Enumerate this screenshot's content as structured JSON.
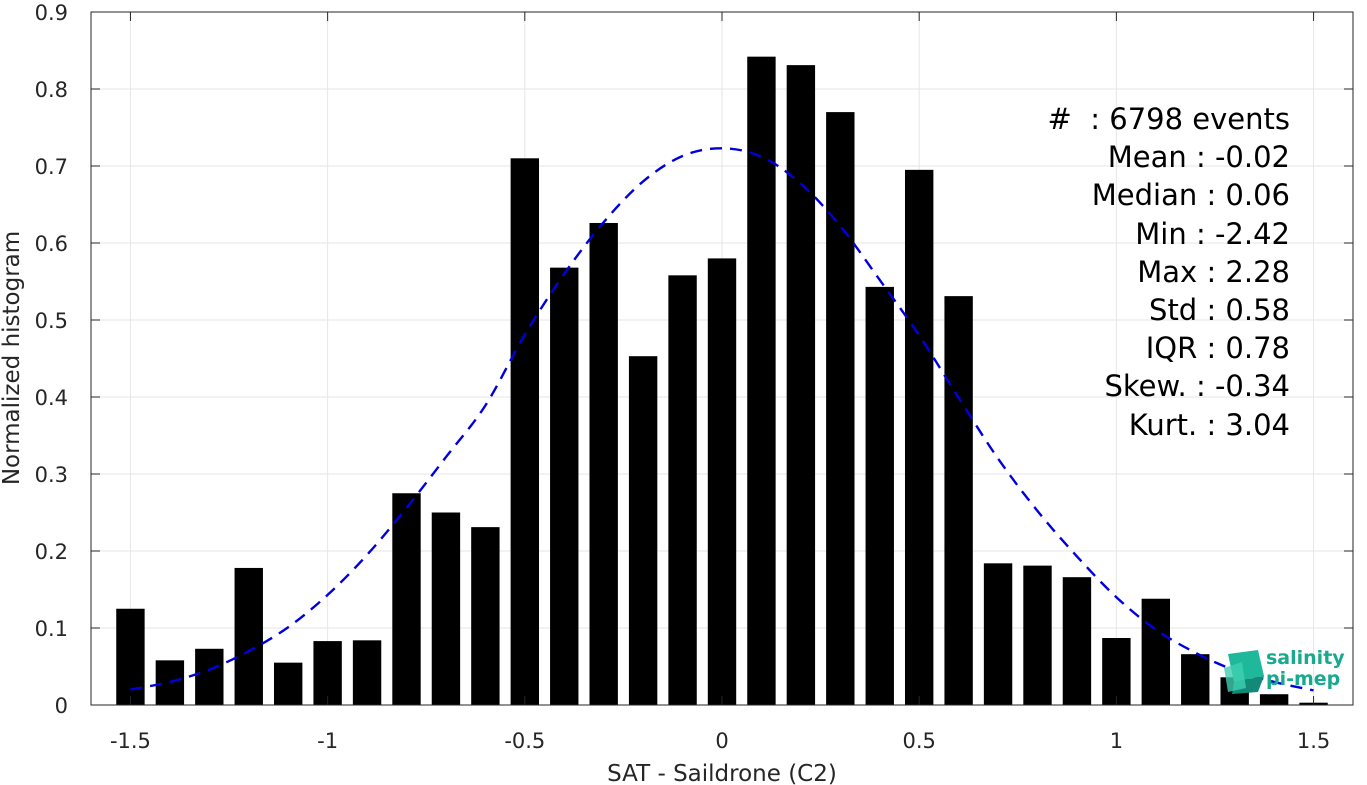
{
  "chart_data": {
    "type": "bar",
    "xlabel": "SAT - Saildrone (C2)",
    "ylabel": "Normalized histogram",
    "xlim": [
      -1.6,
      1.6
    ],
    "ylim": [
      0,
      0.9
    ],
    "xticks": [
      "-1.5",
      "-1",
      "-0.5",
      "0",
      "0.5",
      "1",
      "1.5"
    ],
    "yticks": [
      "0",
      "0.1",
      "0.2",
      "0.3",
      "0.4",
      "0.5",
      "0.6",
      "0.7",
      "0.8",
      "0.9"
    ],
    "grid": true,
    "bar_color": "#000000",
    "bins": {
      "x": [
        -1.5,
        -1.4,
        -1.3,
        -1.2,
        -1.1,
        -1.0,
        -0.9,
        -0.8,
        -0.7,
        -0.6,
        -0.5,
        -0.4,
        -0.3,
        -0.2,
        -0.1,
        0.0,
        0.1,
        0.2,
        0.3,
        0.4,
        0.5,
        0.6,
        0.7,
        0.8,
        0.9,
        1.0,
        1.1,
        1.2,
        1.3,
        1.4,
        1.5
      ],
      "values": [
        0.125,
        0.058,
        0.073,
        0.178,
        0.055,
        0.083,
        0.084,
        0.275,
        0.25,
        0.231,
        0.71,
        0.568,
        0.626,
        0.453,
        0.558,
        0.58,
        0.842,
        0.831,
        0.77,
        0.543,
        0.695,
        0.531,
        0.184,
        0.181,
        0.166,
        0.087,
        0.138,
        0.066,
        0.036,
        0.014,
        0.003
      ]
    },
    "fit_curve": {
      "style": "dashed",
      "color": "#0000dd",
      "x": [
        -1.5,
        -1.4,
        -1.3,
        -1.2,
        -1.1,
        -1.0,
        -0.9,
        -0.8,
        -0.7,
        -0.6,
        -0.5,
        -0.4,
        -0.3,
        -0.2,
        -0.1,
        0.0,
        0.1,
        0.2,
        0.3,
        0.4,
        0.5,
        0.6,
        0.7,
        0.8,
        0.9,
        1.0,
        1.1,
        1.2,
        1.3,
        1.4,
        1.5
      ],
      "y": [
        0.02,
        0.03,
        0.046,
        0.07,
        0.101,
        0.143,
        0.195,
        0.256,
        0.322,
        0.389,
        0.481,
        0.56,
        0.627,
        0.68,
        0.713,
        0.723,
        0.712,
        0.677,
        0.622,
        0.552,
        0.48,
        0.399,
        0.32,
        0.252,
        0.193,
        0.14,
        0.098,
        0.068,
        0.045,
        0.03,
        0.019
      ]
    }
  },
  "stats": [
    {
      "label": "#  ",
      "value": ": 6798 events"
    },
    {
      "label": "Mean ",
      "value": ": -0.02"
    },
    {
      "label": "Median ",
      "value": ": 0.06"
    },
    {
      "label": "Min ",
      "value": ": -2.42"
    },
    {
      "label": "Max ",
      "value": ": 2.28"
    },
    {
      "label": "Std ",
      "value": ": 0.58"
    },
    {
      "label": "IQR ",
      "value": ": 0.78"
    },
    {
      "label": "Skew. ",
      "value": ": -0.34"
    },
    {
      "label": "Kurt. ",
      "value": ": 3.04"
    }
  ],
  "logo": {
    "line1": "salinity",
    "line2": "pi-mep",
    "color": "#18a98f"
  }
}
